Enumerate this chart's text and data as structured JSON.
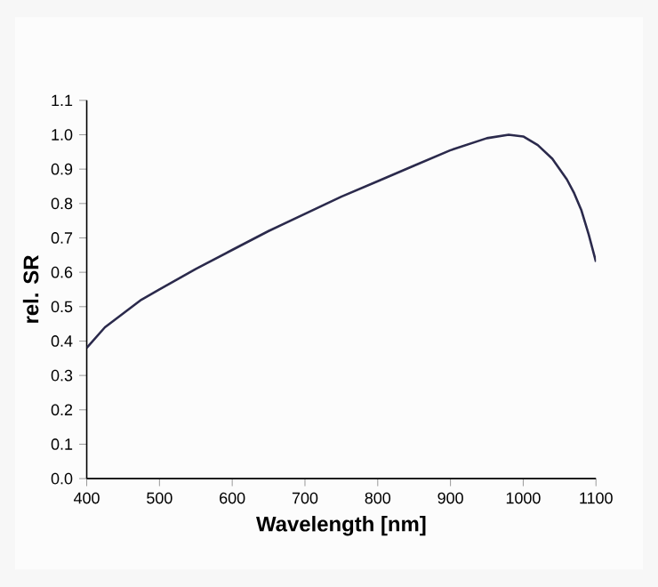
{
  "chart_data": {
    "type": "line",
    "xlabel": "Wavelength [nm]",
    "ylabel": "rel. SR",
    "series": [
      {
        "color": "#2b2a4c",
        "x": [
          400,
          425,
          450,
          475,
          500,
          550,
          600,
          650,
          700,
          750,
          800,
          850,
          900,
          950,
          980,
          1000,
          1020,
          1040,
          1060,
          1070,
          1080,
          1090,
          1100
        ],
        "values": [
          0.38,
          0.44,
          0.48,
          0.52,
          0.55,
          0.61,
          0.665,
          0.72,
          0.77,
          0.82,
          0.865,
          0.91,
          0.955,
          0.99,
          1.0,
          0.995,
          0.97,
          0.93,
          0.87,
          0.83,
          0.78,
          0.71,
          0.63
        ]
      }
    ],
    "xlim": [
      400,
      1100
    ],
    "xticks": [
      400,
      500,
      600,
      700,
      800,
      900,
      1000,
      1100
    ],
    "ylim": [
      0,
      1.1
    ],
    "yticks": [
      {
        "value": 0,
        "label": "0.0"
      },
      0.1,
      0.2,
      0.3,
      0.4,
      0.5,
      0.6,
      0.7,
      0.8,
      0.9,
      {
        "value": 1.0,
        "label": "1.0"
      },
      1.1
    ],
    "grid": false,
    "marker": "none",
    "line_style": "solid"
  }
}
